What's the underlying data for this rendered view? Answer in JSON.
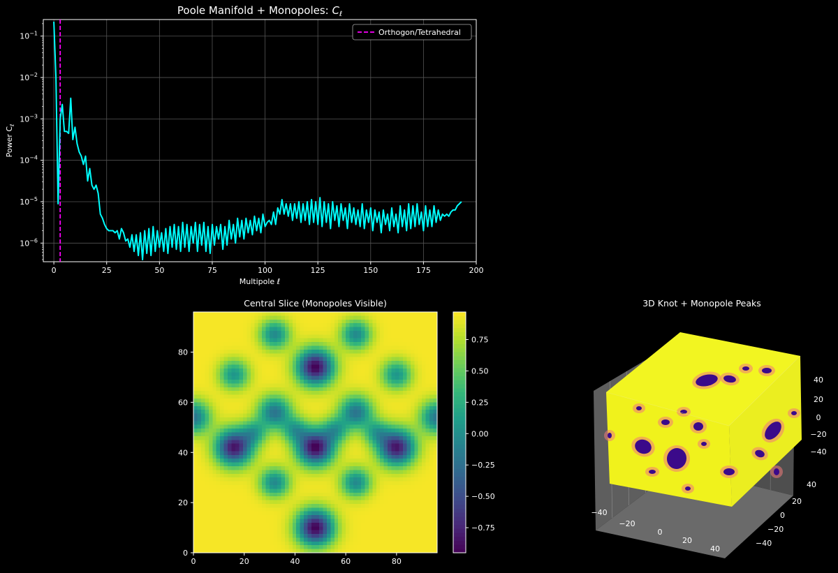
{
  "colors": {
    "background": "#000000",
    "power_line": "#00ffff",
    "marker_line": "#ff00ff",
    "grid": "#555555",
    "cube_yellow": "#f2f521",
    "cube_spot": "#3b0a8a"
  },
  "chart_data": [
    {
      "type": "line",
      "title": "Poole Manifold + Monopoles: ",
      "title_math": "C",
      "title_math_sub": "ℓ",
      "xlabel": "Multipole ℓ",
      "ylabel": "Power C",
      "ylabel_sub": "ℓ",
      "yscale": "log",
      "xlim": [
        -5,
        200
      ],
      "ylim_log10": [
        -6.45,
        -0.6
      ],
      "xticks": [
        0,
        25,
        50,
        75,
        100,
        125,
        150,
        175,
        200
      ],
      "yticks": [
        {
          "exp": -6,
          "label": "10",
          "sup": "−6"
        },
        {
          "exp": -5,
          "label": "10",
          "sup": "−5"
        },
        {
          "exp": -4,
          "label": "10",
          "sup": "−4"
        },
        {
          "exp": -3,
          "label": "10",
          "sup": "−3"
        },
        {
          "exp": -2,
          "label": "10",
          "sup": "−2"
        },
        {
          "exp": -1,
          "label": "10",
          "sup": "−1"
        }
      ],
      "grid": true,
      "legend": {
        "position": "top-right",
        "label": "Orthogon/Tetrahedral"
      },
      "vline_x": 3,
      "series": [
        {
          "name": "C_l",
          "x_start": 0,
          "log10_values": [
            -0.65,
            -2.0,
            -5.05,
            -3.0,
            -2.65,
            -3.3,
            -3.3,
            -3.35,
            -2.5,
            -3.5,
            -3.2,
            -3.6,
            -3.8,
            -3.9,
            -4.1,
            -3.9,
            -4.5,
            -4.2,
            -4.6,
            -4.7,
            -4.6,
            -4.8,
            -5.3,
            -5.4,
            -5.55,
            -5.65,
            -5.7,
            -5.7,
            -5.7,
            -5.75,
            -5.7,
            -5.9,
            -5.65,
            -5.75,
            -5.95,
            -5.9,
            -6.1,
            -5.8,
            -6.2,
            -5.8,
            -6.3,
            -5.75,
            -6.4,
            -5.7,
            -6.25,
            -5.65,
            -6.3,
            -5.6,
            -6.2,
            -5.7,
            -6.1,
            -5.75,
            -6.2,
            -5.65,
            -6.25,
            -5.6,
            -6.1,
            -5.55,
            -6.15,
            -5.6,
            -6.2,
            -5.5,
            -6.1,
            -5.55,
            -6.2,
            -5.6,
            -6.0,
            -5.5,
            -6.2,
            -5.55,
            -6.05,
            -5.5,
            -6.2,
            -5.6,
            -6.25,
            -5.55,
            -6.05,
            -5.6,
            -5.9,
            -5.55,
            -6.15,
            -5.6,
            -6.05,
            -5.45,
            -5.9,
            -5.55,
            -6.0,
            -5.4,
            -5.85,
            -5.45,
            -5.9,
            -5.4,
            -5.75,
            -5.45,
            -5.8,
            -5.35,
            -5.7,
            -5.4,
            -5.75,
            -5.3,
            -5.6,
            -5.5,
            -5.45,
            -5.55,
            -5.25,
            -5.55,
            -5.15,
            -5.3,
            -4.95,
            -5.3,
            -5.05,
            -5.35,
            -5.05,
            -5.45,
            -5.05,
            -5.4,
            -5.0,
            -5.5,
            -5.05,
            -5.45,
            -5.0,
            -5.55,
            -4.95,
            -5.5,
            -5.0,
            -5.55,
            -4.9,
            -5.6,
            -5.0,
            -5.5,
            -5.05,
            -5.65,
            -5.0,
            -5.45,
            -5.1,
            -5.6,
            -5.05,
            -5.45,
            -5.15,
            -5.65,
            -5.05,
            -5.5,
            -5.15,
            -5.55,
            -5.2,
            -5.6,
            -5.05,
            -5.65,
            -5.2,
            -5.5,
            -5.15,
            -5.7,
            -5.2,
            -5.5,
            -5.25,
            -5.75,
            -5.2,
            -5.55,
            -5.3,
            -5.7,
            -5.15,
            -5.6,
            -5.3,
            -5.75,
            -5.1,
            -5.6,
            -5.2,
            -5.7,
            -5.05,
            -5.65,
            -5.1,
            -5.6,
            -5.05,
            -5.55,
            -5.25,
            -5.7,
            -5.1,
            -5.6,
            -5.2,
            -5.6,
            -5.1,
            -5.5,
            -5.2,
            -5.45,
            -5.3,
            -5.35,
            -5.3,
            -5.35,
            -5.25,
            -5.2,
            -5.2,
            -5.1,
            -5.05,
            -5.0
          ]
        }
      ]
    },
    {
      "type": "heatmap",
      "title": "Central Slice (Monopoles Visible)",
      "colormap": "viridis",
      "xlim": [
        0,
        96
      ],
      "ylim": [
        0,
        96
      ],
      "xticks": [
        0,
        20,
        40,
        60,
        80
      ],
      "yticks": [
        0,
        20,
        40,
        60,
        80
      ],
      "colorbar": {
        "range": [
          -0.95,
          0.97
        ],
        "ticks": [
          0.75,
          0.5,
          0.25,
          0.0,
          -0.25,
          -0.5,
          -0.75
        ],
        "tick_labels": [
          "0.75",
          "0.50",
          "0.25",
          "0.00",
          "−0.25",
          "−0.50",
          "−0.75"
        ]
      },
      "blobs": [
        {
          "x": 48,
          "y": 74,
          "amp": 1.9,
          "r": 5
        },
        {
          "x": 48,
          "y": 42,
          "amp": 1.9,
          "r": 5
        },
        {
          "x": 48,
          "y": 10,
          "amp": 1.9,
          "r": 5
        },
        {
          "x": 16,
          "y": 42,
          "amp": 1.8,
          "r": 5
        },
        {
          "x": 80,
          "y": 42,
          "amp": 1.8,
          "r": 5
        },
        {
          "x": 32,
          "y": 87,
          "amp": 1.0,
          "r": 4
        },
        {
          "x": 64,
          "y": 87,
          "amp": 1.0,
          "r": 4
        },
        {
          "x": 16,
          "y": 71,
          "amp": 0.9,
          "r": 4
        },
        {
          "x": 80,
          "y": 71,
          "amp": 0.9,
          "r": 4
        },
        {
          "x": 32,
          "y": 56,
          "amp": 1.15,
          "r": 4.5
        },
        {
          "x": 64,
          "y": 56,
          "amp": 1.15,
          "r": 4.5
        },
        {
          "x": 0,
          "y": 54,
          "amp": 1.15,
          "r": 4.5
        },
        {
          "x": 96,
          "y": 54,
          "amp": 1.15,
          "r": 4.5
        },
        {
          "x": 32,
          "y": 28,
          "amp": 1.0,
          "r": 4
        },
        {
          "x": 64,
          "y": 28,
          "amp": 1.0,
          "r": 4
        },
        {
          "x": 24,
          "y": 48,
          "amp": 0.7,
          "r": 3.5
        },
        {
          "x": 72,
          "y": 48,
          "amp": 0.7,
          "r": 3.5
        },
        {
          "x": 40,
          "y": 49,
          "amp": 0.75,
          "r": 3.5
        },
        {
          "x": 56,
          "y": 49,
          "amp": 0.75,
          "r": 3.5
        }
      ]
    },
    {
      "type": "scatter3d",
      "title": "3D Knot + Monopole Peaks",
      "colormap": "plasma",
      "axis_ticks": {
        "x": [
          "−40",
          "−20",
          "0",
          "20",
          "40"
        ],
        "y": [
          "40",
          "20",
          "0",
          "−20",
          "−40"
        ],
        "z": [
          "40",
          "20",
          "0",
          "−20",
          "−40"
        ]
      }
    }
  ]
}
